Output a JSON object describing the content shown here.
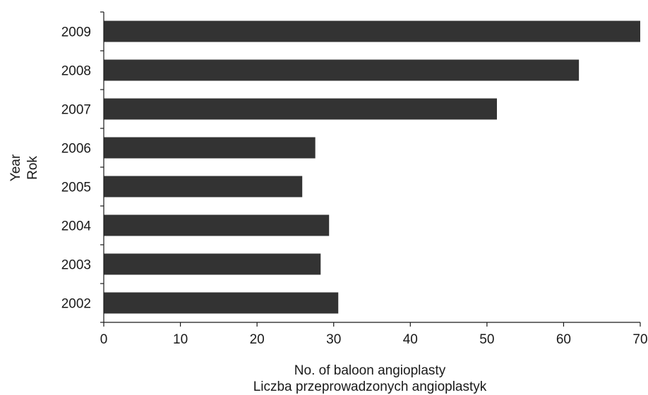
{
  "chart_data": {
    "type": "bar",
    "orientation": "horizontal",
    "categories": [
      "2009",
      "2008",
      "2007",
      "2006",
      "2005",
      "2004",
      "2003",
      "2002"
    ],
    "values": [
      70,
      62,
      51.3,
      27.6,
      25.9,
      29.4,
      28.3,
      30.6
    ],
    "xlabel": [
      "No. of baloon angioplasty",
      "Liczba przeprowadzonych angioplastyk"
    ],
    "ylabel": [
      "Year",
      "Rok"
    ],
    "xlim": [
      0,
      70
    ],
    "xticks": [
      0,
      10,
      20,
      30,
      40,
      50,
      60,
      70
    ],
    "grid": false,
    "bar_color": "#333333"
  }
}
